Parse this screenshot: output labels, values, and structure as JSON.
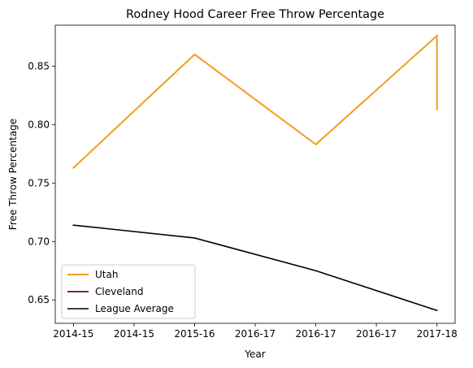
{
  "chart_data": {
    "type": "line",
    "title": "Rodney Hood Career Free Throw Percentage",
    "xlabel": "Year",
    "ylabel": "Free Throw Percentage",
    "xlim": [
      -0.15,
      3.15
    ],
    "ylim": [
      0.63,
      0.885
    ],
    "x_ticks": [
      {
        "value": 0.0,
        "label": "2014-15"
      },
      {
        "value": 0.5,
        "label": "2014-15"
      },
      {
        "value": 1.0,
        "label": "2015-16"
      },
      {
        "value": 1.5,
        "label": "2016-17"
      },
      {
        "value": 2.0,
        "label": "2016-17"
      },
      {
        "value": 2.5,
        "label": "2016-17"
      },
      {
        "value": 3.0,
        "label": "2017-18"
      }
    ],
    "y_ticks": [
      {
        "value": 0.65,
        "label": "0.65"
      },
      {
        "value": 0.7,
        "label": "0.70"
      },
      {
        "value": 0.75,
        "label": "0.75"
      },
      {
        "value": 0.8,
        "label": "0.80"
      },
      {
        "value": 0.85,
        "label": "0.85"
      }
    ],
    "series": [
      {
        "name": "Utah",
        "color": "#f39c1f",
        "width": 2,
        "points": [
          {
            "x": 0,
            "y": 0.763
          },
          {
            "x": 1,
            "y": 0.86
          },
          {
            "x": 2,
            "y": 0.783
          },
          {
            "x": 3,
            "y": 0.876
          },
          {
            "x": 3,
            "y": 0.813
          }
        ]
      },
      {
        "name": "Cleveland",
        "color": "#6f2a40",
        "width": 2,
        "points": []
      },
      {
        "name": "League Average",
        "color": "#000000",
        "width": 1.6,
        "points": [
          {
            "x": 0,
            "y": 0.714
          },
          {
            "x": 1,
            "y": 0.703
          },
          {
            "x": 2,
            "y": 0.675
          },
          {
            "x": 3,
            "y": 0.641
          }
        ]
      }
    ],
    "legend_position": "lower-left",
    "grid": false
  }
}
